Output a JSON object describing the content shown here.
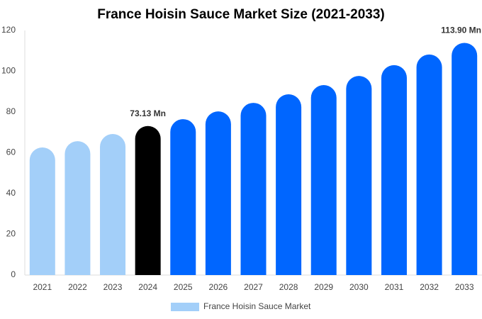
{
  "chart_data": {
    "type": "bar",
    "title": "France Hoisin Sauce Market Size (2021-2033)",
    "categories": [
      "2021",
      "2022",
      "2023",
      "2024",
      "2025",
      "2026",
      "2027",
      "2028",
      "2029",
      "2030",
      "2031",
      "2032",
      "2033"
    ],
    "series": [
      {
        "name": "France Hoisin Sauce Market",
        "color": "#a3cff9",
        "colors": [
          "#a3cff9",
          "#a3cff9",
          "#a3cff9",
          "#000000",
          "#0066ff",
          "#0066ff",
          "#0066ff",
          "#0066ff",
          "#0066ff",
          "#0066ff",
          "#0066ff",
          "#0066ff",
          "#0066ff"
        ],
        "values": [
          62.6,
          65.7,
          69.2,
          73.13,
          76.5,
          80.3,
          84.5,
          88.7,
          93.2,
          97.7,
          103,
          108.2,
          113.9
        ],
        "value_labels": [
          null,
          null,
          null,
          "73.13 Mn",
          null,
          null,
          null,
          null,
          null,
          null,
          null,
          null,
          "113.90 Mn"
        ]
      }
    ],
    "ylim": [
      0,
      120
    ],
    "yticks": [
      0,
      20,
      40,
      60,
      80,
      100,
      120
    ],
    "grid": false
  }
}
